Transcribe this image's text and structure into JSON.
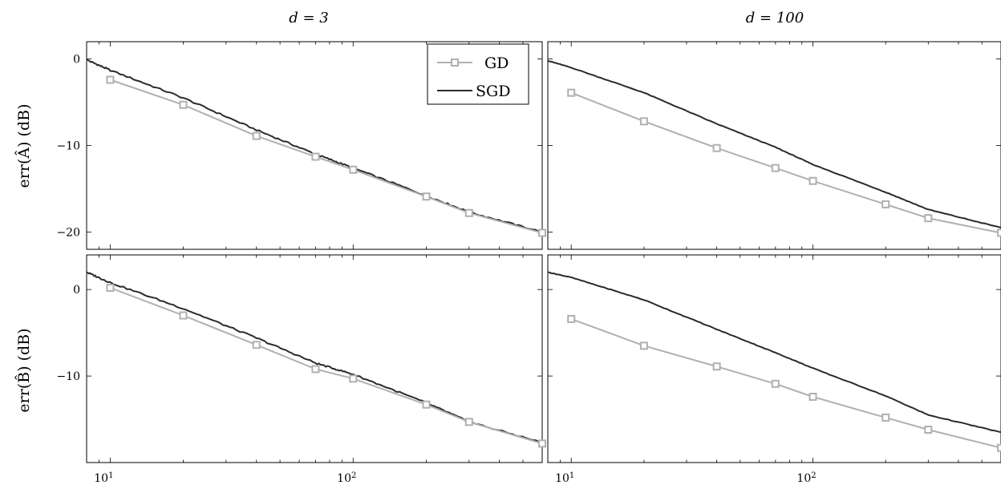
{
  "figure": {
    "col_titles": [
      "d = 3",
      "d = 100"
    ],
    "row_labels": [
      "err(Â) (dB)",
      "err(B̂) (dB)"
    ]
  },
  "colors": {
    "gd": "#b0b0b0",
    "sgd": "#2b2b2b",
    "axis": "#000000"
  },
  "legend": {
    "position": "top-right of first panel",
    "entries": [
      {
        "label": "GD",
        "marker": "square"
      },
      {
        "label": "SGD",
        "marker": "none"
      }
    ]
  },
  "chart_data": [
    {
      "type": "line",
      "title": "d = 3",
      "ylabel": "err(Â) (dB)",
      "xscale": "log",
      "xlim": [
        8,
        600
      ],
      "ylim": [
        -22,
        2
      ],
      "xticks": [
        "10^1",
        "10^2"
      ],
      "yticks": [
        0,
        -10,
        -20
      ],
      "series": [
        {
          "name": "GD",
          "x": [
            10,
            20,
            40,
            70,
            100,
            200,
            300,
            600
          ],
          "y": [
            -2.4,
            -5.3,
            -8.9,
            -11.3,
            -12.8,
            -15.9,
            -17.8,
            -20.1
          ]
        },
        {
          "name": "SGD",
          "x": [
            8,
            10,
            20,
            40,
            70,
            100,
            200,
            300,
            600
          ],
          "y": [
            -0.1,
            -1.3,
            -4.5,
            -8.2,
            -11.0,
            -12.6,
            -15.8,
            -17.7,
            -20.0
          ]
        }
      ]
    },
    {
      "type": "line",
      "title": "d = 100",
      "ylabel": "",
      "xscale": "log",
      "xlim": [
        8,
        600
      ],
      "ylim": [
        -22,
        2
      ],
      "xticks": [
        "10^1",
        "10^2"
      ],
      "yticks": [
        0,
        -10,
        -20
      ],
      "series": [
        {
          "name": "GD",
          "x": [
            10,
            20,
            40,
            70,
            100,
            200,
            300,
            600
          ],
          "y": [
            -3.9,
            -7.2,
            -10.3,
            -12.6,
            -14.1,
            -16.8,
            -18.4,
            -20.1
          ]
        },
        {
          "name": "SGD",
          "x": [
            8,
            10,
            20,
            40,
            70,
            100,
            200,
            300,
            600
          ],
          "y": [
            -0.2,
            -1.0,
            -3.9,
            -7.5,
            -10.2,
            -12.2,
            -15.4,
            -17.4,
            -19.5
          ]
        }
      ]
    },
    {
      "type": "line",
      "title": "",
      "ylabel": "err(B̂) (dB)",
      "xscale": "log",
      "xlim": [
        8,
        600
      ],
      "ylim": [
        -20,
        4
      ],
      "xticks": [
        "10^1",
        "10^2"
      ],
      "yticks": [
        0,
        -10
      ],
      "series": [
        {
          "name": "GD",
          "x": [
            10,
            20,
            40,
            70,
            100,
            200,
            300,
            600
          ],
          "y": [
            0.2,
            -3.0,
            -6.4,
            -9.2,
            -10.3,
            -13.3,
            -15.3,
            -17.8
          ]
        },
        {
          "name": "SGD",
          "x": [
            8,
            10,
            20,
            40,
            70,
            100,
            200,
            300,
            600
          ],
          "y": [
            2.0,
            0.8,
            -2.2,
            -5.6,
            -8.5,
            -9.8,
            -13.1,
            -15.3,
            -17.7
          ]
        }
      ]
    },
    {
      "type": "line",
      "title": "",
      "ylabel": "",
      "xscale": "log",
      "xlim": [
        8,
        600
      ],
      "ylim": [
        -20,
        4
      ],
      "xticks": [
        "10^1",
        "10^2"
      ],
      "yticks": [
        0,
        -10
      ],
      "series": [
        {
          "name": "GD",
          "x": [
            10,
            20,
            40,
            70,
            100,
            200,
            300,
            600
          ],
          "y": [
            -3.4,
            -6.5,
            -8.9,
            -10.9,
            -12.4,
            -14.8,
            -16.2,
            -18.3
          ]
        },
        {
          "name": "SGD",
          "x": [
            8,
            10,
            20,
            40,
            70,
            100,
            200,
            300,
            600
          ],
          "y": [
            2.0,
            1.4,
            -1.2,
            -4.6,
            -7.3,
            -9.1,
            -12.3,
            -14.5,
            -16.5
          ]
        }
      ]
    }
  ]
}
